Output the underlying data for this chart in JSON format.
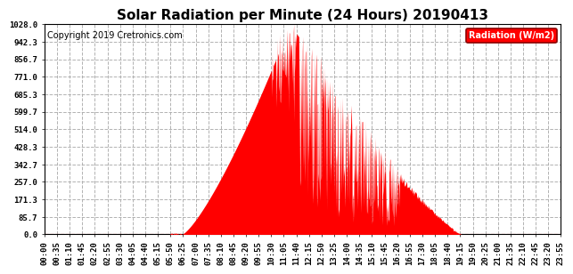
{
  "title": "Solar Radiation per Minute (24 Hours) 20190413",
  "copyright_text": "Copyright 2019 Cretronics.com",
  "legend_label": "Radiation (W/m2)",
  "yticks": [
    0.0,
    85.7,
    171.3,
    257.0,
    342.7,
    428.3,
    514.0,
    599.7,
    685.3,
    771.0,
    856.7,
    942.3,
    1028.0
  ],
  "ymax": 1028.0,
  "ymin": 0.0,
  "fill_color": "#ff0000",
  "line_color": "#ff0000",
  "grid_color": "#aaaaaa",
  "background_color": "#ffffff",
  "title_fontsize": 11,
  "axis_fontsize": 6.5,
  "copyright_fontsize": 7,
  "xtick_labels": [
    "00:00",
    "00:35",
    "01:10",
    "01:45",
    "02:20",
    "02:55",
    "03:30",
    "04:05",
    "04:40",
    "05:15",
    "05:50",
    "06:25",
    "07:00",
    "07:35",
    "08:10",
    "08:45",
    "09:20",
    "09:55",
    "10:30",
    "11:05",
    "11:40",
    "12:15",
    "12:50",
    "13:25",
    "14:00",
    "14:35",
    "15:10",
    "15:45",
    "16:20",
    "16:55",
    "17:30",
    "18:05",
    "18:40",
    "19:15",
    "19:50",
    "20:25",
    "21:00",
    "21:35",
    "22:10",
    "22:45",
    "23:20",
    "23:55"
  ],
  "sunrise_min": 383,
  "sunset_min": 1163,
  "solar_noon_min": 685,
  "peak_value": 1028.0
}
